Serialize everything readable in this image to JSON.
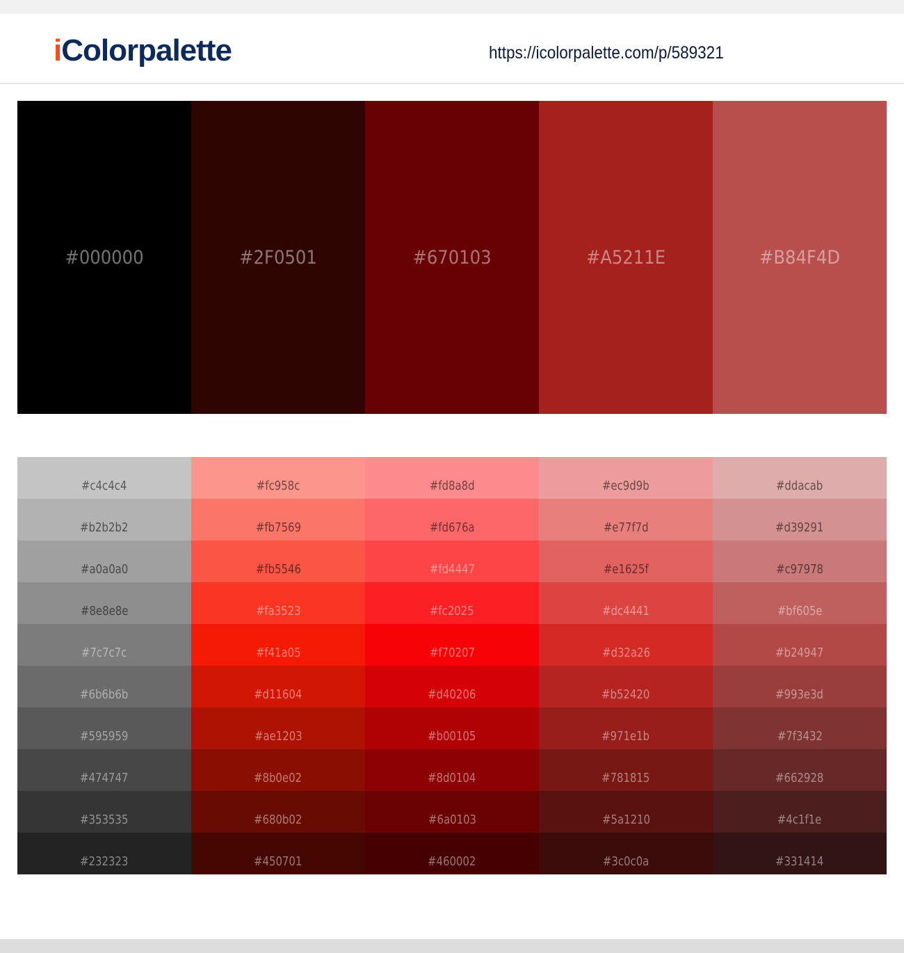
{
  "header": {
    "logo_prefix": "i",
    "logo_main": "Colorpalette",
    "url": "https://icolorpalette.com/p/589321"
  },
  "palette": [
    {
      "hex": "#000000",
      "label": "#000000"
    },
    {
      "hex": "#2F0501",
      "label": "#2F0501"
    },
    {
      "hex": "#670103",
      "label": "#670103"
    },
    {
      "hex": "#A5211E",
      "label": "#A5211E"
    },
    {
      "hex": "#B84F4D",
      "label": "#B84F4D"
    }
  ],
  "shades": [
    [
      "#c4c4c4",
      "#b2b2b2",
      "#a0a0a0",
      "#8e8e8e",
      "#7c7c7c",
      "#6b6b6b",
      "#595959",
      "#474747",
      "#353535",
      "#232323"
    ],
    [
      "#fc958c",
      "#fb7569",
      "#fb5546",
      "#fa3523",
      "#f41a05",
      "#d11604",
      "#ae1203",
      "#8b0e02",
      "#680b02",
      "#450701"
    ],
    [
      "#fd8a8d",
      "#fd676a",
      "#fd4447",
      "#fc2025",
      "#f70207",
      "#d40206",
      "#b00105",
      "#8d0104",
      "#6a0103",
      "#460002"
    ],
    [
      "#ec9d9b",
      "#e77f7d",
      "#e1625f",
      "#dc4441",
      "#d32a26",
      "#b52420",
      "#971e1b",
      "#781815",
      "#5a1210",
      "#3c0c0a"
    ],
    [
      "#ddacab",
      "#d39291",
      "#c97978",
      "#bf605e",
      "#b24947",
      "#993e3d",
      "#7f3432",
      "#662928",
      "#4c1f1e",
      "#331414"
    ]
  ]
}
